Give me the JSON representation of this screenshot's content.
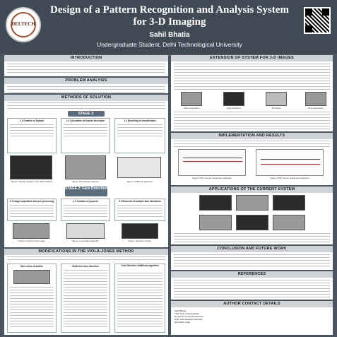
{
  "header": {
    "title_line1": "Design of a Pattern Recognition and Analysis System",
    "title_line2": "for 3-D Imaging",
    "author": "Sahil Bhatia",
    "affiliation": "Undergraduate Student, Delhi Technological University",
    "logo_text": "DELTECH",
    "logo_icon": "university-seal-icon",
    "qr_icon": "qr-code-icon"
  },
  "sections": {
    "introduction": "INTRODUCTION",
    "problem_analysis": "PROBLEM ANALYSIS",
    "methods_of_solution": "METHODS OF SOLUTION",
    "modifications": "MODIFICATIONS IN THE VIOLA-JONES METHOD",
    "extension": "EXTENSION OF SYSTEM FOR 3-D IMAGES",
    "implementation": "IMPLEMENTATION AND RESULTS",
    "applications": "APPLICATIONS OF THE CURRENT SYSTEM",
    "conclusion": "CONCLUSION AND FUTURE WORK",
    "references": "REFERENCES",
    "author_contact": "AUTHOR CONTACT DETAILS"
  },
  "stages": {
    "stage1": "STAGE 1:",
    "stage2": "STAGE 2: Face Detection"
  },
  "stage1_boxes": [
    "1.1 Creation of Dataset",
    "1.2 Calculation of feature descriptor",
    "1.3 Modelling of classification"
  ],
  "stage2_boxes": [
    "2.1 Image acquisition and pre-processing",
    "2.2 Creation of pyramid",
    "2.3 Removal of multiple face detections"
  ],
  "figure_captions": {
    "fig_images": "Figure: Sample images in the LBPH dataset",
    "fig_rect": "Figure: Rectangular features",
    "fig_adaboost": "Figure: AdaBoost algorithm",
    "fig_typical": "Figure: A typical input image",
    "fig_cascade": "Figure: A cascaded classifier",
    "fig_detect": "Figure: Detection of face"
  },
  "viola_boxes": [
    "Skin colour detection",
    "Multi-view face detection",
    "Cost-Sensitive AdaBoost algorithm"
  ],
  "extension_figs": [
    "Video Acquisition",
    "Face Detection",
    "3D Model",
    "Pose Estimation"
  ],
  "implementation_plots": [
    "Figure: ROC plot for frontal face detection",
    "Figure: ROC plot for profile face detection"
  ],
  "author_contact": {
    "name": "Sahil Bhatia",
    "year": "Third Year Undergraduate",
    "dept": "Department of Applied Physics",
    "univ": "Delhi Technological University",
    "city": "New Delhi, India"
  }
}
